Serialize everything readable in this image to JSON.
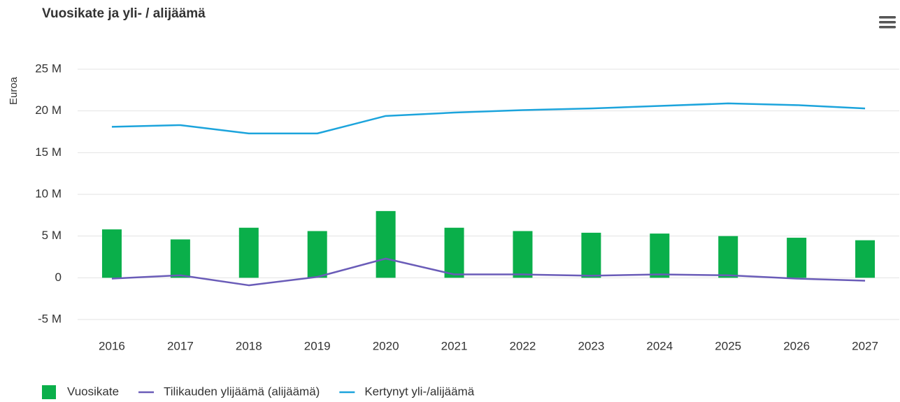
{
  "chart_data": {
    "type": "bar-line",
    "title": "Vuosikate ja yli- / alijäämä",
    "y_label": "Euroa",
    "categories": [
      "2016",
      "2017",
      "2018",
      "2019",
      "2020",
      "2021",
      "2022",
      "2023",
      "2024",
      "2025",
      "2026",
      "2027"
    ],
    "series": [
      {
        "name": "Vuosikate",
        "type": "bar",
        "color": "#0aaf4a",
        "values": [
          5800000,
          4600000,
          6000000,
          5600000,
          8000000,
          6000000,
          5600000,
          5400000,
          5300000,
          5000000,
          4800000,
          4500000
        ]
      },
      {
        "name": "Tilikauden ylijäämä (alijäämä)",
        "type": "line",
        "color": "#6a5cb8",
        "values": [
          -100000,
          300000,
          -900000,
          100000,
          2300000,
          400000,
          400000,
          250000,
          400000,
          300000,
          -100000,
          -350000
        ]
      },
      {
        "name": "Kertynyt yli-/alijäämä",
        "type": "line",
        "color": "#1ca4dc",
        "values": [
          18100000,
          18300000,
          17300000,
          17300000,
          19400000,
          19800000,
          20100000,
          20300000,
          20600000,
          20900000,
          20700000,
          20300000
        ]
      }
    ],
    "ylim": [
      -5000000,
      25000000
    ],
    "yticks": [
      {
        "value": -5000000,
        "label": "-5 M"
      },
      0,
      {
        "value": 5000000,
        "label": "5 M"
      },
      {
        "value": 10000000,
        "label": "10 M"
      },
      {
        "value": 15000000,
        "label": "15 M"
      },
      {
        "value": 20000000,
        "label": "20 M"
      },
      {
        "value": 25000000,
        "label": "25 M"
      }
    ],
    "grid": true,
    "legend": "bottom-left"
  }
}
